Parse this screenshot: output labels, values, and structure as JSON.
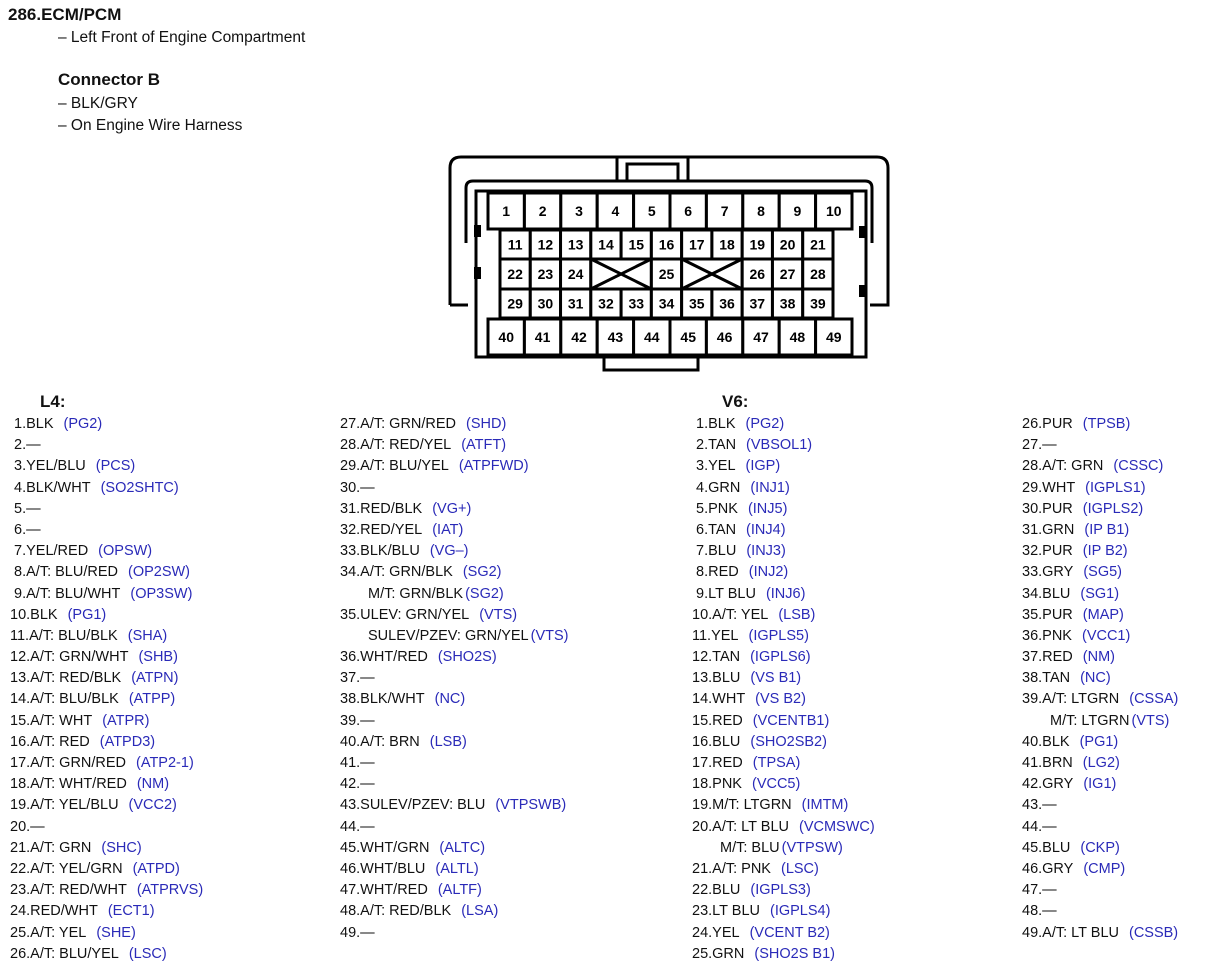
{
  "header": {
    "title": "286.ECM/PCM",
    "location": "– Left Front of Engine Compartment",
    "connector_title": "Connector B",
    "color": "– BLK/GRY",
    "mount": "– On Engine Wire Harness"
  },
  "connector": {
    "row1": [
      "1",
      "2",
      "3",
      "4",
      "5",
      "6",
      "7",
      "8",
      "9",
      "10"
    ],
    "row2": [
      "11",
      "12",
      "13",
      "14",
      "15",
      "16",
      "17",
      "18",
      "19",
      "20",
      "21"
    ],
    "row3": [
      "22",
      "23",
      "24",
      "X",
      "X",
      "25",
      "X",
      "X",
      "26",
      "27",
      "28"
    ],
    "row4": [
      "29",
      "30",
      "31",
      "32",
      "33",
      "34",
      "35",
      "36",
      "37",
      "38",
      "39"
    ],
    "row5": [
      "40",
      "41",
      "42",
      "43",
      "44",
      "45",
      "46",
      "47",
      "48",
      "49"
    ]
  },
  "l4": {
    "heading": "L4:",
    "col1": [
      {
        "t": " 1.BLK",
        "c": "(PG2)"
      },
      {
        "t": " 2.—",
        "c": ""
      },
      {
        "t": " 3.YEL/BLU",
        "c": "(PCS)"
      },
      {
        "t": " 4.BLK/WHT",
        "c": "(SO2SHTC)"
      },
      {
        "t": " 5.—",
        "c": ""
      },
      {
        "t": " 6.—",
        "c": ""
      },
      {
        "t": " 7.YEL/RED",
        "c": "(OPSW)"
      },
      {
        "t": " 8.A/T: BLU/RED",
        "c": "(OP2SW)"
      },
      {
        "t": " 9.A/T: BLU/WHT",
        "c": "(OP3SW)"
      },
      {
        "t": "10.BLK",
        "c": "(PG1)"
      },
      {
        "t": "11.A/T: BLU/BLK",
        "c": "(SHA)"
      },
      {
        "t": "12.A/T: GRN/WHT",
        "c": "(SHB)"
      },
      {
        "t": "13.A/T: RED/BLK",
        "c": "(ATPN)"
      },
      {
        "t": "14.A/T: BLU/BLK",
        "c": "(ATPP)"
      },
      {
        "t": "15.A/T: WHT",
        "c": "(ATPR)"
      },
      {
        "t": "16.A/T: RED",
        "c": "(ATPD3)"
      },
      {
        "t": "17.A/T: GRN/RED",
        "c": "(ATP2-1)"
      },
      {
        "t": "18.A/T: WHT/RED",
        "c": "(NM)"
      },
      {
        "t": "19.A/T: YEL/BLU",
        "c": "(VCC2)"
      },
      {
        "t": "20.—",
        "c": ""
      },
      {
        "t": "21.A/T: GRN",
        "c": "(SHC)"
      },
      {
        "t": "22.A/T: YEL/GRN",
        "c": "(ATPD)"
      },
      {
        "t": "23.A/T: RED/WHT",
        "c": "(ATPRVS)"
      },
      {
        "t": "24.RED/WHT",
        "c": "(ECT1)"
      },
      {
        "t": "25.A/T: YEL",
        "c": "(SHE)"
      },
      {
        "t": "26.A/T: BLU/YEL",
        "c": "(LSC)"
      }
    ],
    "col2": [
      {
        "t": "27.A/T: GRN/RED",
        "c": "(SHD)"
      },
      {
        "t": "28.A/T: RED/YEL",
        "c": "(ATFT)"
      },
      {
        "t": "29.A/T: BLU/YEL",
        "c": "(ATPFWD)"
      },
      {
        "t": "30.—",
        "c": ""
      },
      {
        "t": "31.RED/BLK",
        "c": "(VG+)"
      },
      {
        "t": "32.RED/YEL",
        "c": "(IAT)"
      },
      {
        "t": "33.BLK/BLU",
        "c": "(VG–)"
      },
      {
        "t": "34.A/T: GRN/BLK",
        "c": "(SG2)"
      },
      {
        "t": "M/T: GRN/BLK",
        "c": "(SG2)",
        "i": true
      },
      {
        "t": "35.ULEV: GRN/YEL",
        "c": "(VTS)"
      },
      {
        "t": "SULEV/PZEV: GRN/YEL",
        "c": "(VTS)",
        "i": true
      },
      {
        "t": "36.WHT/RED",
        "c": "(SHO2S)"
      },
      {
        "t": "37.—",
        "c": ""
      },
      {
        "t": "38.BLK/WHT",
        "c": "(NC)"
      },
      {
        "t": "39.—",
        "c": ""
      },
      {
        "t": "40.A/T: BRN",
        "c": "(LSB)"
      },
      {
        "t": "41.—",
        "c": ""
      },
      {
        "t": "42.—",
        "c": ""
      },
      {
        "t": "43.SULEV/PZEV: BLU",
        "c": "(VTPSWB)"
      },
      {
        "t": "44.—",
        "c": ""
      },
      {
        "t": "45.WHT/GRN",
        "c": "(ALTC)"
      },
      {
        "t": "46.WHT/BLU",
        "c": "(ALTL)"
      },
      {
        "t": "47.WHT/RED",
        "c": "(ALTF)"
      },
      {
        "t": "48.A/T: RED/BLK",
        "c": "(LSA)"
      },
      {
        "t": "49.—",
        "c": ""
      }
    ]
  },
  "v6": {
    "heading": "V6:",
    "col1": [
      {
        "t": " 1.BLK",
        "c": "(PG2)"
      },
      {
        "t": " 2.TAN",
        "c": "(VBSOL1)"
      },
      {
        "t": " 3.YEL",
        "c": "(IGP)"
      },
      {
        "t": " 4.GRN",
        "c": "(INJ1)"
      },
      {
        "t": " 5.PNK",
        "c": "(INJ5)"
      },
      {
        "t": " 6.TAN",
        "c": "(INJ4)"
      },
      {
        "t": " 7.BLU",
        "c": "(INJ3)"
      },
      {
        "t": " 8.RED",
        "c": "(INJ2)"
      },
      {
        "t": " 9.LT BLU",
        "c": "(INJ6)"
      },
      {
        "t": "10.A/T: YEL",
        "c": "(LSB)"
      },
      {
        "t": "11.YEL",
        "c": "(IGPLS5)"
      },
      {
        "t": "12.TAN",
        "c": "(IGPLS6)"
      },
      {
        "t": "13.BLU",
        "c": "(VS B1)"
      },
      {
        "t": "14.WHT",
        "c": "(VS B2)"
      },
      {
        "t": "15.RED",
        "c": "(VCENTB1)"
      },
      {
        "t": "16.BLU",
        "c": "(SHO2SB2)"
      },
      {
        "t": "17.RED",
        "c": "(TPSA)"
      },
      {
        "t": "18.PNK",
        "c": "(VCC5)"
      },
      {
        "t": "19.M/T: LTGRN",
        "c": "(IMTM)"
      },
      {
        "t": "20.A/T: LT BLU",
        "c": "(VCMSWC)"
      },
      {
        "t": "M/T: BLU",
        "c": "(VTPSW)",
        "i": true
      },
      {
        "t": "21.A/T: PNK",
        "c": "(LSC)"
      },
      {
        "t": "22.BLU",
        "c": "(IGPLS3)"
      },
      {
        "t": "23.LT BLU",
        "c": "(IGPLS4)"
      },
      {
        "t": "24.YEL",
        "c": "(VCENT B2)"
      },
      {
        "t": "25.GRN",
        "c": "(SHO2S B1)"
      }
    ],
    "col2": [
      {
        "t": "26.PUR",
        "c": "(TPSB)"
      },
      {
        "t": "27.—",
        "c": ""
      },
      {
        "t": "28.A/T: GRN",
        "c": "(CSSC)"
      },
      {
        "t": "29.WHT",
        "c": "(IGPLS1)"
      },
      {
        "t": "30.PUR",
        "c": "(IGPLS2)"
      },
      {
        "t": "31.GRN",
        "c": "(IP B1)"
      },
      {
        "t": "32.PUR",
        "c": "(IP B2)"
      },
      {
        "t": "33.GRY",
        "c": "(SG5)"
      },
      {
        "t": "34.BLU",
        "c": "(SG1)"
      },
      {
        "t": "35.PUR",
        "c": "(MAP)"
      },
      {
        "t": "36.PNK",
        "c": "(VCC1)"
      },
      {
        "t": "37.RED",
        "c": "(NM)"
      },
      {
        "t": "38.TAN",
        "c": "(NC)"
      },
      {
        "t": "39.A/T: LTGRN",
        "c": "(CSSA)"
      },
      {
        "t": "M/T: LTGRN",
        "c": "(VTS)",
        "i": true
      },
      {
        "t": "40.BLK",
        "c": "(PG1)"
      },
      {
        "t": "41.BRN",
        "c": "(LG2)"
      },
      {
        "t": "42.GRY",
        "c": "(IG1)"
      },
      {
        "t": "43.—",
        "c": ""
      },
      {
        "t": "44.—",
        "c": ""
      },
      {
        "t": "45.BLU",
        "c": "(CKP)"
      },
      {
        "t": "46.GRY",
        "c": "(CMP)"
      },
      {
        "t": "47.—",
        "c": ""
      },
      {
        "t": "48.—",
        "c": ""
      },
      {
        "t": "49.A/T: LT BLU",
        "c": "(CSSB)"
      }
    ]
  },
  "colors": {
    "code": "#2a2ab8",
    "text": "#111111"
  }
}
